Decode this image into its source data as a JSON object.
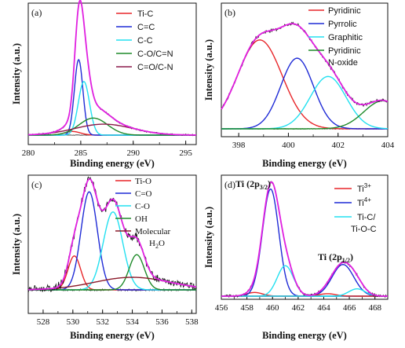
{
  "chart_data": [
    {
      "type": "line",
      "panel_label": "(a)",
      "xlabel": "Binding energy (eV)",
      "ylabel": "Intensity  (a.u.)",
      "xlim": [
        280,
        296
      ],
      "xticks": [
        280,
        285,
        290,
        295
      ],
      "series": [
        {
          "name": "Ti-C",
          "color": "#e8262a",
          "center": 284.2,
          "amp": 0.03,
          "fwhm": 1.8
        },
        {
          "name": "C=C",
          "color": "#1f2bd6",
          "center": 284.8,
          "amp": 0.62,
          "fwhm": 0.95
        },
        {
          "name": "C-C",
          "color": "#22e0f0",
          "center": 285.3,
          "amp": 0.44,
          "fwhm": 1.25
        },
        {
          "name": "C-O/C=N",
          "color": "#1f8a2a",
          "center": 286.2,
          "amp": 0.14,
          "fwhm": 3.2
        },
        {
          "name": "C=O/C-N",
          "color": "#8b1a4a",
          "center": 287.2,
          "amp": 0.09,
          "fwhm": 6.5
        }
      ],
      "envelope_color": "#e020e0"
    },
    {
      "type": "line",
      "panel_label": "(b)",
      "xlabel": "Binding energy (eV)",
      "ylabel": "Intensity (a.u.)",
      "xlim": [
        397.3,
        404
      ],
      "xticks": [
        398,
        400,
        402,
        404
      ],
      "series": [
        {
          "name": "Pyridinic",
          "color": "#e8262a",
          "center": 398.85,
          "amp": 0.73,
          "fwhm": 2.1
        },
        {
          "name": "Pyrrolic",
          "color": "#1f2bd6",
          "center": 400.35,
          "amp": 0.58,
          "fwhm": 1.55
        },
        {
          "name": "Graphitic",
          "color": "#22e0f0",
          "center": 401.6,
          "amp": 0.43,
          "fwhm": 1.7
        },
        {
          "name": "Pyridinic N-oxide",
          "color": "#1f8a2a",
          "center": 403.8,
          "amp": 0.23,
          "fwhm": 1.8
        }
      ],
      "envelope_color": "#e020e0"
    },
    {
      "type": "line",
      "panel_label": "(c)",
      "xlabel": "Binding energy (eV)",
      "ylabel": "Intensity (a.u.)",
      "xlim": [
        527,
        538.3
      ],
      "xticks": [
        528,
        530,
        532,
        534,
        536,
        538
      ],
      "series": [
        {
          "name": "Ti-O",
          "color": "#e8262a",
          "center": 530.1,
          "amp": 0.27,
          "fwhm": 1.0
        },
        {
          "name": "C=O",
          "color": "#1f2bd6",
          "center": 531.1,
          "amp": 0.78,
          "fwhm": 1.3
        },
        {
          "name": "C-O",
          "color": "#22e0f0",
          "center": 532.7,
          "amp": 0.62,
          "fwhm": 1.55
        },
        {
          "name": "OH",
          "color": "#1f8a2a",
          "center": 534.3,
          "amp": 0.28,
          "fwhm": 1.2
        },
        {
          "name": "Molecular H2O",
          "color": "#8b1a2a",
          "center": 534.0,
          "amp": 0.1,
          "fwhm": 6.0
        }
      ],
      "envelope_color": "#e020e0"
    },
    {
      "type": "line",
      "panel_label": "(d)",
      "xlabel": "Binding energy (eV)",
      "ylabel": "Intensity (a.u.)",
      "xlim": [
        456,
        469
      ],
      "xticks": [
        456,
        458,
        460,
        462,
        464,
        466,
        468
      ],
      "annotations": [
        {
          "text": "Ti  (2p",
          "sub": "3/2",
          "close": ")"
        },
        {
          "text": "Ti  (2p",
          "sub": "1/2",
          "close": ")"
        }
      ],
      "series": [
        {
          "name": "Ti3+",
          "color": "#e8262a",
          "center": 458.6,
          "amp": 0.03,
          "fwhm": 1.5
        },
        {
          "name": "Ti4+",
          "color": "#1f2bd6",
          "center": 459.85,
          "amp": 0.88,
          "fwhm": 1.5
        },
        {
          "name": "Ti-C/ Ti-O-C",
          "color": "#22e0f0",
          "center": 461.0,
          "amp": 0.25,
          "fwhm": 1.5
        },
        {
          "name": "Ti4+ (2p1/2)",
          "color": "#1f2bd6",
          "center": 465.5,
          "amp": 0.26,
          "fwhm": 2.0
        },
        {
          "name": "Ti3+ (2p1/2)",
          "color": "#e8262a",
          "center": 464.3,
          "amp": 0.02,
          "fwhm": 1.5
        },
        {
          "name": "Ti-C (2p1/2)",
          "color": "#22e0f0",
          "center": 466.6,
          "amp": 0.06,
          "fwhm": 1.5
        }
      ],
      "envelope_color": "#e020e0"
    }
  ],
  "legend_b_extra": "N-oxide",
  "legend_c_extra": "Molecular",
  "legend_c_h2o": "H",
  "legend_c_h2o_sub": "2",
  "legend_c_h2o_o": "O",
  "legend_d": {
    "ti3": "Ti",
    "ti3_sup": "3+",
    "ti4": "Ti",
    "ti4_sup": "4+",
    "tic1": "Ti-C/",
    "tic2": "Ti-O-C"
  }
}
